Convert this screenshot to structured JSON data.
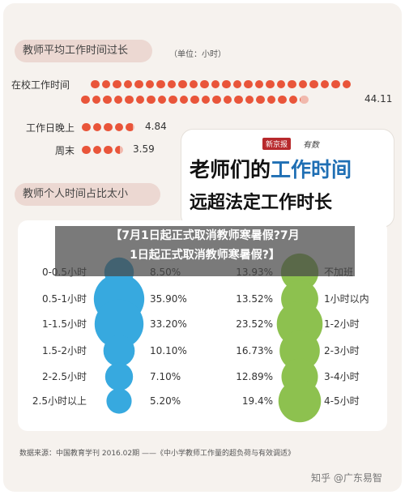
{
  "section1": {
    "title": "教师平均工作时间过长",
    "unit": "（单位：小时）"
  },
  "chart_data": [
    {
      "type": "bar",
      "title": "教师平均工作时间过长",
      "unit": "（单位：小时）",
      "categories": [
        "在校工作时间",
        "工作日晚上",
        "周末"
      ],
      "values": [
        44.11,
        4.84,
        3.59
      ],
      "value_labels": [
        "44.11",
        "4.84",
        "3.59"
      ]
    },
    {
      "type": "scatter",
      "title": "教师个人时间占比太小",
      "series": [
        {
          "categories": [
            "0-0.5小时",
            "0.5-1小时",
            "1-1.5小时",
            "1.5-2小时",
            "2-2.5小时",
            "2.5小时以上"
          ],
          "values": [
            8.5,
            35.9,
            33.2,
            10.1,
            7.1,
            5.2
          ],
          "value_labels": [
            "8.50%",
            "35.90%",
            "33.20%",
            "10.10%",
            "7.10%",
            "5.20%"
          ]
        },
        {
          "categories": [
            "不加班",
            "1小时以内",
            "1-2小时",
            "2-3小时",
            "3-4小时",
            "4-5小时"
          ],
          "values": [
            13.93,
            13.52,
            23.52,
            16.73,
            12.89,
            19.4
          ],
          "value_labels": [
            "13.93%",
            "13.52%",
            "23.52%",
            "16.73%",
            "12.89%",
            "19.4%"
          ]
        }
      ]
    }
  ],
  "section2": {
    "title": "教师个人时间占比太小",
    "partial_header": "工作"
  },
  "headline": {
    "brand": "新京报",
    "brand2": "有数",
    "line1_pre": "老师们的",
    "line1_hl": "工作时间",
    "line2": "远超法定工作时长"
  },
  "overlay": {
    "line1": "【7月1日起正式取消教师寒暑假?7月",
    "line2": "1日起正式取消教师寒暑假?】"
  },
  "source": "数据来源：中国教育学刊 2016.02期 ——《中小学教师工作量的超负荷与有效调适》",
  "credit": "知乎 @广东易智",
  "colors": {
    "red_dot": "#e9553a",
    "blue": "#37a9df",
    "green": "#8dc14f",
    "pill": "#ecd8d2",
    "headline_blue": "#1f6fb4"
  }
}
